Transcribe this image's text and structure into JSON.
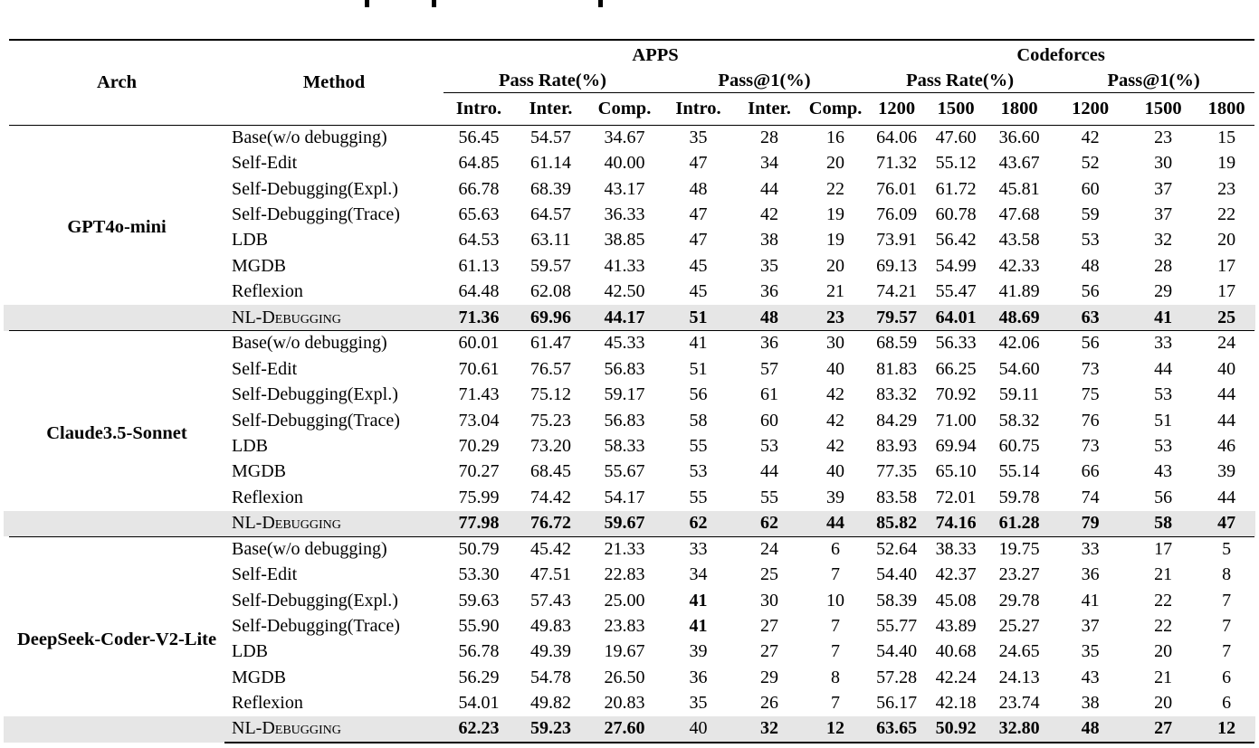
{
  "table": {
    "headers": {
      "arch": "Arch",
      "method": "Method",
      "groups": [
        {
          "label": "APPS"
        },
        {
          "label": "Codeforces"
        }
      ],
      "subgroups": [
        "Pass Rate(%)",
        "Pass@1(%)",
        "Pass Rate(%)",
        "Pass@1(%)"
      ],
      "columns": [
        "Intro.",
        "Inter.",
        "Comp.",
        "Intro.",
        "Inter.",
        "Comp.",
        "1200",
        "1500",
        "1800",
        "1200",
        "1500",
        "1800"
      ]
    },
    "highlight_color": "#e6e6e6",
    "blocks": [
      {
        "arch": "GPT4o-mini",
        "rows": [
          {
            "method": "Base(w/o debugging)",
            "values": [
              "56.45",
              "54.57",
              "34.67",
              "35",
              "28",
              "16",
              "64.06",
              "47.60",
              "36.60",
              "42",
              "23",
              "15"
            ],
            "bold": [],
            "highlight": false,
            "smallcaps": false
          },
          {
            "method": "Self-Edit",
            "values": [
              "64.85",
              "61.14",
              "40.00",
              "47",
              "34",
              "20",
              "71.32",
              "55.12",
              "43.67",
              "52",
              "30",
              "19"
            ],
            "bold": [],
            "highlight": false,
            "smallcaps": false
          },
          {
            "method": "Self-Debugging(Expl.)",
            "values": [
              "66.78",
              "68.39",
              "43.17",
              "48",
              "44",
              "22",
              "76.01",
              "61.72",
              "45.81",
              "60",
              "37",
              "23"
            ],
            "bold": [],
            "highlight": false,
            "smallcaps": false
          },
          {
            "method": "Self-Debugging(Trace)",
            "values": [
              "65.63",
              "64.57",
              "36.33",
              "47",
              "42",
              "19",
              "76.09",
              "60.78",
              "47.68",
              "59",
              "37",
              "22"
            ],
            "bold": [],
            "highlight": false,
            "smallcaps": false
          },
          {
            "method": "LDB",
            "values": [
              "64.53",
              "63.11",
              "38.85",
              "47",
              "38",
              "19",
              "73.91",
              "56.42",
              "43.58",
              "53",
              "32",
              "20"
            ],
            "bold": [],
            "highlight": false,
            "smallcaps": false
          },
          {
            "method": "MGDB",
            "values": [
              "61.13",
              "59.57",
              "41.33",
              "45",
              "35",
              "20",
              "69.13",
              "54.99",
              "42.33",
              "48",
              "28",
              "17"
            ],
            "bold": [],
            "highlight": false,
            "smallcaps": false
          },
          {
            "method": "Reflexion",
            "values": [
              "64.48",
              "62.08",
              "42.50",
              "45",
              "36",
              "21",
              "74.21",
              "55.47",
              "41.89",
              "56",
              "29",
              "17"
            ],
            "bold": [],
            "highlight": false,
            "smallcaps": false
          },
          {
            "method": "NL-Debugging",
            "values": [
              "71.36",
              "69.96",
              "44.17",
              "51",
              "48",
              "23",
              "79.57",
              "64.01",
              "48.69",
              "63",
              "41",
              "25"
            ],
            "bold": [
              0,
              1,
              2,
              3,
              4,
              5,
              6,
              7,
              8,
              9,
              10,
              11
            ],
            "highlight": true,
            "smallcaps": true
          }
        ]
      },
      {
        "arch": "Claude3.5-Sonnet",
        "rows": [
          {
            "method": "Base(w/o debugging)",
            "values": [
              "60.01",
              "61.47",
              "45.33",
              "41",
              "36",
              "30",
              "68.59",
              "56.33",
              "42.06",
              "56",
              "33",
              "24"
            ],
            "bold": [],
            "highlight": false,
            "smallcaps": false
          },
          {
            "method": "Self-Edit",
            "values": [
              "70.61",
              "76.57",
              "56.83",
              "51",
              "57",
              "40",
              "81.83",
              "66.25",
              "54.60",
              "73",
              "44",
              "40"
            ],
            "bold": [],
            "highlight": false,
            "smallcaps": false
          },
          {
            "method": "Self-Debugging(Expl.)",
            "values": [
              "71.43",
              "75.12",
              "59.17",
              "56",
              "61",
              "42",
              "83.32",
              "70.92",
              "59.11",
              "75",
              "53",
              "44"
            ],
            "bold": [],
            "highlight": false,
            "smallcaps": false
          },
          {
            "method": "Self-Debugging(Trace)",
            "values": [
              "73.04",
              "75.23",
              "56.83",
              "58",
              "60",
              "42",
              "84.29",
              "71.00",
              "58.32",
              "76",
              "51",
              "44"
            ],
            "bold": [],
            "highlight": false,
            "smallcaps": false
          },
          {
            "method": "LDB",
            "values": [
              "70.29",
              "73.20",
              "58.33",
              "55",
              "53",
              "42",
              "83.93",
              "69.94",
              "60.75",
              "73",
              "53",
              "46"
            ],
            "bold": [],
            "highlight": false,
            "smallcaps": false
          },
          {
            "method": "MGDB",
            "values": [
              "70.27",
              "68.45",
              "55.67",
              "53",
              "44",
              "40",
              "77.35",
              "65.10",
              "55.14",
              "66",
              "43",
              "39"
            ],
            "bold": [],
            "highlight": false,
            "smallcaps": false
          },
          {
            "method": "Reflexion",
            "values": [
              "75.99",
              "74.42",
              "54.17",
              "55",
              "55",
              "39",
              "83.58",
              "72.01",
              "59.78",
              "74",
              "56",
              "44"
            ],
            "bold": [],
            "highlight": false,
            "smallcaps": false
          },
          {
            "method": "NL-Debugging",
            "values": [
              "77.98",
              "76.72",
              "59.67",
              "62",
              "62",
              "44",
              "85.82",
              "74.16",
              "61.28",
              "79",
              "58",
              "47"
            ],
            "bold": [
              0,
              1,
              2,
              3,
              4,
              5,
              6,
              7,
              8,
              9,
              10,
              11
            ],
            "highlight": true,
            "smallcaps": true
          }
        ]
      },
      {
        "arch": "DeepSeek-Coder-V2-Lite",
        "rows": [
          {
            "method": "Base(w/o debugging)",
            "values": [
              "50.79",
              "45.42",
              "21.33",
              "33",
              "24",
              "6",
              "52.64",
              "38.33",
              "19.75",
              "33",
              "17",
              "5"
            ],
            "bold": [],
            "highlight": false,
            "smallcaps": false
          },
          {
            "method": "Self-Edit",
            "values": [
              "53.30",
              "47.51",
              "22.83",
              "34",
              "25",
              "7",
              "54.40",
              "42.37",
              "23.27",
              "36",
              "21",
              "8"
            ],
            "bold": [],
            "highlight": false,
            "smallcaps": false
          },
          {
            "method": "Self-Debugging(Expl.)",
            "values": [
              "59.63",
              "57.43",
              "25.00",
              "41",
              "30",
              "10",
              "58.39",
              "45.08",
              "29.78",
              "41",
              "22",
              "7"
            ],
            "bold": [
              3
            ],
            "highlight": false,
            "smallcaps": false
          },
          {
            "method": "Self-Debugging(Trace)",
            "values": [
              "55.90",
              "49.83",
              "23.83",
              "41",
              "27",
              "7",
              "55.77",
              "43.89",
              "25.27",
              "37",
              "22",
              "7"
            ],
            "bold": [
              3
            ],
            "highlight": false,
            "smallcaps": false
          },
          {
            "method": "LDB",
            "values": [
              "56.78",
              "49.39",
              "19.67",
              "39",
              "27",
              "7",
              "54.40",
              "40.68",
              "24.65",
              "35",
              "20",
              "7"
            ],
            "bold": [],
            "highlight": false,
            "smallcaps": false
          },
          {
            "method": "MGDB",
            "values": [
              "56.29",
              "54.78",
              "26.50",
              "36",
              "29",
              "8",
              "57.28",
              "42.24",
              "24.13",
              "43",
              "21",
              "6"
            ],
            "bold": [],
            "highlight": false,
            "smallcaps": false
          },
          {
            "method": "Reflexion",
            "values": [
              "54.01",
              "49.82",
              "20.83",
              "35",
              "26",
              "7",
              "56.17",
              "42.18",
              "23.74",
              "38",
              "20",
              "6"
            ],
            "bold": [],
            "highlight": false,
            "smallcaps": false
          },
          {
            "method": "NL-Debugging",
            "values": [
              "62.23",
              "59.23",
              "27.60",
              "40",
              "32",
              "12",
              "63.65",
              "50.92",
              "32.80",
              "48",
              "27",
              "12"
            ],
            "bold": [
              0,
              1,
              2,
              4,
              5,
              6,
              7,
              8,
              9,
              10,
              11
            ],
            "highlight": true,
            "smallcaps": true
          }
        ]
      }
    ]
  }
}
